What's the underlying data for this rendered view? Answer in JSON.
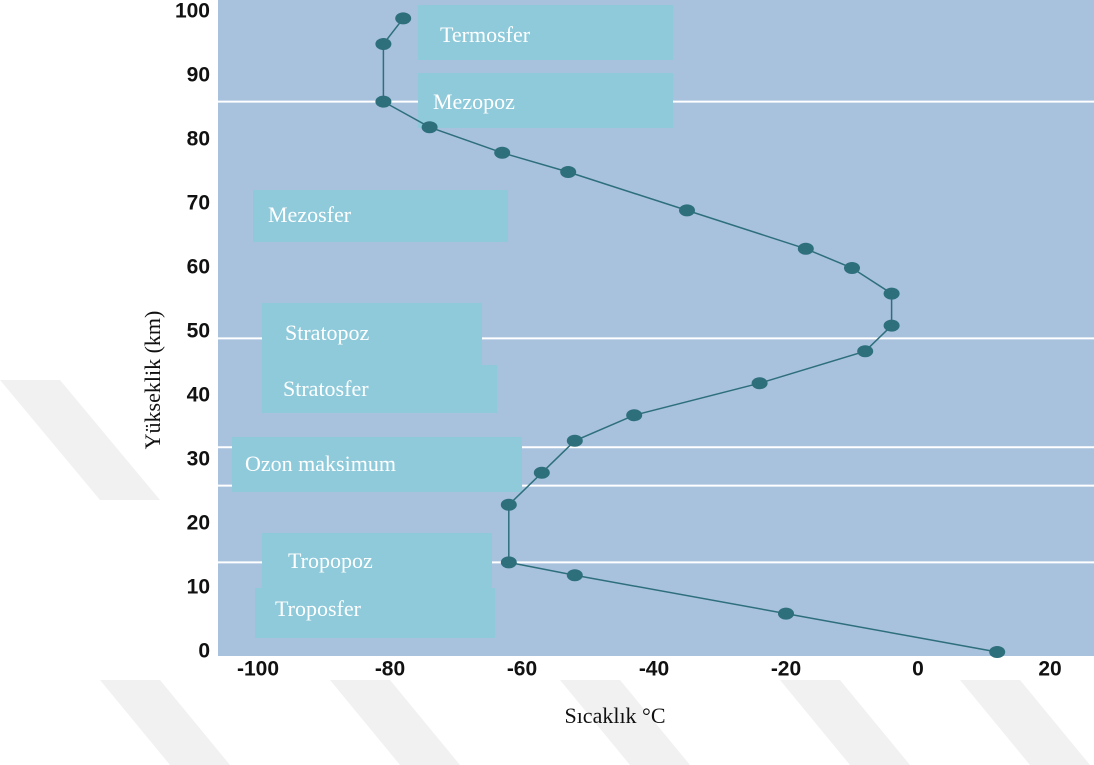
{
  "chart_data": {
    "type": "line",
    "x_label": "Sıcaklık °C",
    "y_label": "Yükseklik (km)",
    "x": [
      12,
      -20,
      -52,
      -62,
      -62,
      -57,
      -52,
      -43,
      -24,
      -8,
      -4,
      -4,
      -10,
      -17,
      -35,
      -53,
      -63,
      -74,
      -81,
      -81,
      -78
    ],
    "values": [
      0,
      6,
      12,
      14,
      23,
      28,
      33,
      37,
      42,
      47,
      51,
      56,
      60,
      63,
      69,
      75,
      78,
      82,
      86,
      95,
      99
    ],
    "color": "#2e6f7c",
    "xlim": [
      -106,
      27
    ],
    "ylim": [
      0,
      102
    ],
    "xticks": [
      -100,
      -80,
      -60,
      -40,
      -20,
      0,
      20
    ],
    "yticks": [
      0,
      10,
      20,
      30,
      40,
      50,
      60,
      70,
      80,
      90,
      100
    ],
    "boundaries": [
      86,
      49,
      32,
      26,
      14
    ],
    "annotations": [
      "Termosfer",
      "Mezopoz",
      "Mezosfer",
      "Stratopoz",
      "Stratosfer",
      "Ozon maksimum",
      "Tropopoz",
      "Troposfer"
    ]
  }
}
